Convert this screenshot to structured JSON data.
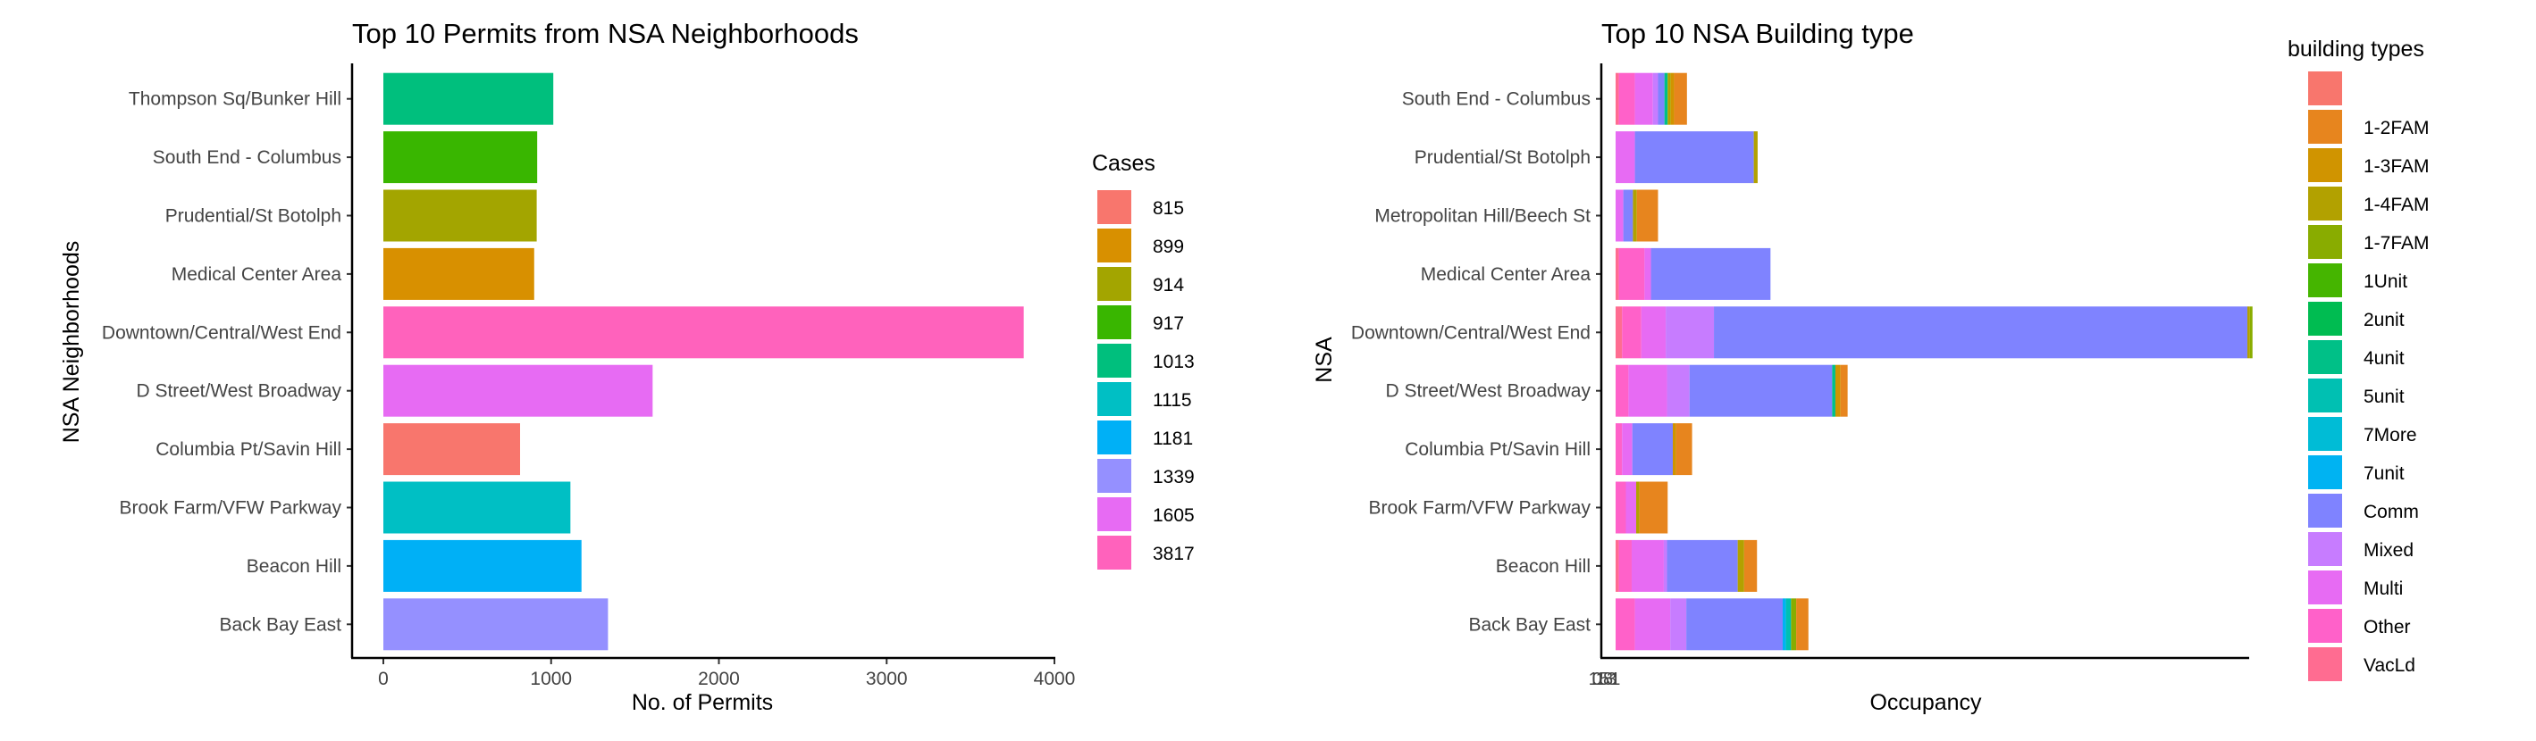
{
  "chart_data": [
    {
      "type": "bar",
      "orientation": "horizontal",
      "title": "Top 10 Permits from NSA Neighborhoods",
      "xlabel": "No. of Permits",
      "ylabel": "NSA Neighborhoods",
      "xlim": [
        0,
        4000
      ],
      "xticks": [
        "0",
        "1000",
        "2000",
        "3000",
        "4000"
      ],
      "grid": false,
      "categories": [
        "Thompson Sq/Bunker Hill",
        "South End - Columbus",
        "Prudential/St Botolph",
        "Medical Center Area",
        "Downtown/Central/West End",
        "D Street/West Broadway",
        "Columbia Pt/Savin Hill",
        "Brook Farm/VFW Parkway",
        "Beacon Hill",
        "Back Bay East"
      ],
      "values": [
        1013,
        917,
        914,
        899,
        3817,
        1605,
        815,
        1115,
        1181,
        1339
      ],
      "legend": {
        "title": "Cases",
        "placement": "right",
        "items": [
          {
            "label": "815",
            "color": "#F8766D"
          },
          {
            "label": "899",
            "color": "#D89000"
          },
          {
            "label": "914",
            "color": "#A3A500"
          },
          {
            "label": "917",
            "color": "#39B600"
          },
          {
            "label": "1013",
            "color": "#00BF7D"
          },
          {
            "label": "1115",
            "color": "#00BFC4"
          },
          {
            "label": "1181",
            "color": "#00B0F6"
          },
          {
            "label": "1339",
            "color": "#9590FF"
          },
          {
            "label": "1605",
            "color": "#E76BF3"
          },
          {
            "label": "3817",
            "color": "#FF62BC"
          }
        ]
      }
    },
    {
      "type": "bar",
      "orientation": "horizontal",
      "stacked": true,
      "title": "Top 10 NSA Building type",
      "xlabel": "Occupancy",
      "ylabel": "NSA",
      "xtick_overlap_text": "1015831",
      "grid": false,
      "categories": [
        "South End - Columbus",
        "Prudential/St Botolph",
        "Metropolitan Hill/Beech St",
        "Medical Center Area",
        "Downtown/Central/West End",
        "D Street/West Broadway",
        "Columbia Pt/Savin Hill",
        "Brook Farm/VFW Parkway",
        "Beacon Hill",
        "Back Bay East"
      ],
      "xlim": [
        0,
        1015
      ],
      "segments": [
        [
          [
            "VacLd",
            5
          ],
          [
            "Other",
            25
          ],
          [
            "Multi",
            28
          ],
          [
            "Mixed",
            8
          ],
          [
            "Comm",
            10
          ],
          [
            "4unit",
            5
          ],
          [
            "1-4FAM",
            5
          ],
          [
            "1-3FAM",
            5
          ],
          [
            "1-2FAM",
            20
          ]
        ],
        [
          [
            "Multi",
            30
          ],
          [
            "Comm",
            185
          ],
          [
            "1-4FAM",
            6
          ]
        ],
        [
          [
            "Multi",
            12
          ],
          [
            "Comm",
            15
          ],
          [
            "1-4FAM",
            6
          ],
          [
            "1-2FAM",
            33
          ]
        ],
        [
          [
            "VacLd",
            5
          ],
          [
            "Other",
            40
          ],
          [
            "Multi",
            10
          ],
          [
            "Comm",
            186
          ]
        ],
        [
          [
            "VacLd",
            10
          ],
          [
            "Other",
            30
          ],
          [
            "Multi",
            38
          ],
          [
            "Mixed",
            75
          ],
          [
            "Comm",
            830
          ],
          [
            "1-4FAM",
            4
          ],
          [
            "1-7FAM",
            4
          ]
        ],
        [
          [
            "Other",
            20
          ],
          [
            "Multi",
            60
          ],
          [
            "Mixed",
            35
          ],
          [
            "Comm",
            222
          ],
          [
            "4unit",
            5
          ],
          [
            "1-3FAM",
            8
          ],
          [
            "1-2FAM",
            11
          ]
        ],
        [
          [
            "Other",
            10
          ],
          [
            "Multi",
            16
          ],
          [
            "Comm",
            63
          ],
          [
            "1-3FAM",
            5
          ],
          [
            "1-2FAM",
            25
          ]
        ],
        [
          [
            "Other",
            16
          ],
          [
            "Multi",
            16
          ],
          [
            "1-4FAM",
            5
          ],
          [
            "1-2FAM",
            44
          ]
        ],
        [
          [
            "VacLd",
            5
          ],
          [
            "Other",
            20
          ],
          [
            "Multi",
            50
          ],
          [
            "Mixed",
            5
          ],
          [
            "Comm",
            110
          ],
          [
            "1-4FAM",
            10
          ],
          [
            "1-2FAM",
            20
          ]
        ],
        [
          [
            "Other",
            30
          ],
          [
            "Multi",
            55
          ],
          [
            "Mixed",
            25
          ],
          [
            "Comm",
            150
          ],
          [
            "7unit",
            5
          ],
          [
            "5unit",
            8
          ],
          [
            "1-7FAM",
            8
          ],
          [
            "1-2FAM",
            19
          ]
        ]
      ],
      "legend": {
        "title": "building types",
        "placement": "right",
        "items": [
          {
            "label": "",
            "color": "#F8766D"
          },
          {
            "label": "1-2FAM",
            "color": "#E7851E"
          },
          {
            "label": "1-3FAM",
            "color": "#D09400"
          },
          {
            "label": "1-4FAM",
            "color": "#B2A100"
          },
          {
            "label": "1-7FAM",
            "color": "#89AC00"
          },
          {
            "label": "1Unit",
            "color": "#45B500"
          },
          {
            "label": "2unit",
            "color": "#00BC51"
          },
          {
            "label": "4unit",
            "color": "#00C087"
          },
          {
            "label": "5unit",
            "color": "#00C0B2"
          },
          {
            "label": "7More",
            "color": "#00BCD6"
          },
          {
            "label": "7unit",
            "color": "#00B3F2"
          },
          {
            "label": "Comm",
            "color": "#7F83FF"
          },
          {
            "label": "Mixed",
            "color": "#C77CFF"
          },
          {
            "label": "Multi",
            "color": "#E76BF3"
          },
          {
            "label": "Other",
            "color": "#FF61C9"
          },
          {
            "label": "VacLd",
            "color": "#FF6C91"
          }
        ]
      }
    }
  ]
}
